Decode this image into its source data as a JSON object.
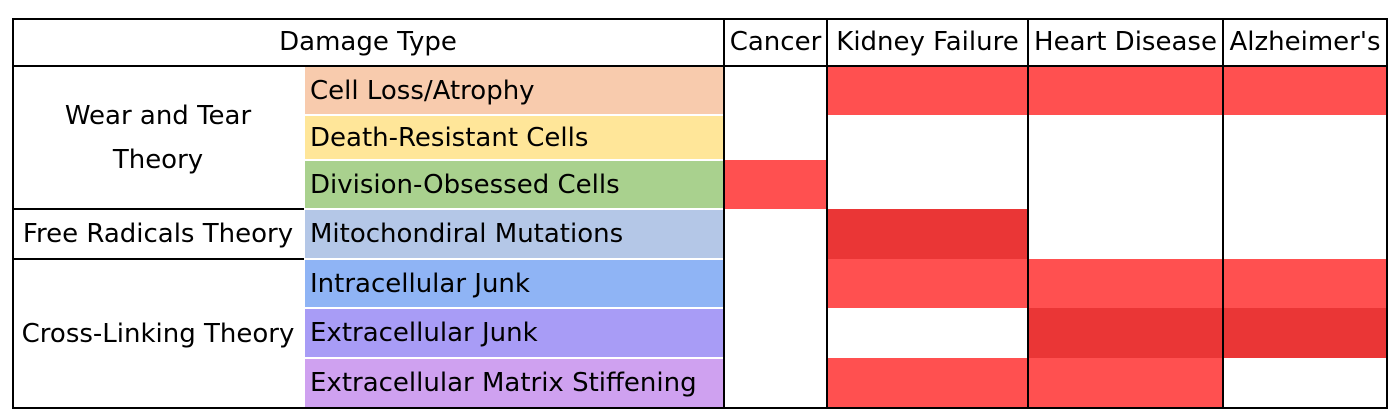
{
  "chart_data": {
    "type": "table",
    "header": {
      "damage_type": "Damage Type",
      "diseases": [
        "Cancer",
        "Kidney Failure",
        "Heart Disease",
        "Alzheimer's"
      ]
    },
    "theories": [
      {
        "label": "Wear and Tear Theory",
        "rows": [
          0,
          1,
          2
        ]
      },
      {
        "label": "Free Radicals Theory",
        "rows": [
          3
        ]
      },
      {
        "label": "Cross-Linking Theory",
        "rows": [
          4,
          5,
          6
        ]
      }
    ],
    "damage_types": [
      {
        "label": "Cell Loss/Atrophy",
        "color": "#f8cbad"
      },
      {
        "label": "Death-Resistant Cells",
        "color": "#ffe699"
      },
      {
        "label": "Division-Obsessed Cells",
        "color": "#a9d18e"
      },
      {
        "label": "Mitochondiral Mutations",
        "color": "#b4c7e7"
      },
      {
        "label": "Intracellular Junk",
        "color": "#8fb4f5"
      },
      {
        "label": "Extracellular Junk",
        "color": "#a89cf6"
      },
      {
        "label": "Extracellular Matrix Stiffening",
        "color": "#cfa1f0"
      }
    ],
    "matrix": [
      [
        0,
        1,
        1,
        1
      ],
      [
        0,
        0,
        0,
        0
      ],
      [
        1,
        0,
        0,
        0
      ],
      [
        0,
        2,
        0,
        0
      ],
      [
        0,
        1,
        1,
        1
      ],
      [
        0,
        0,
        2,
        2
      ],
      [
        0,
        1,
        1,
        0
      ]
    ],
    "colors": {
      "level1": "#ff5050",
      "level2": "#ea3636",
      "empty": "#ffffff"
    }
  }
}
